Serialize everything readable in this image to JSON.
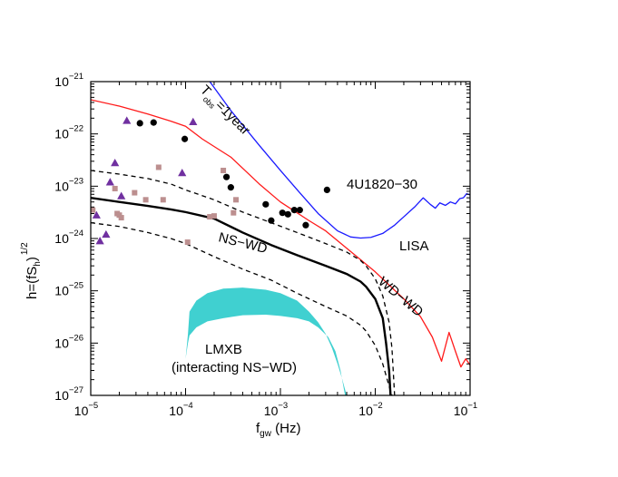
{
  "chart_data": {
    "type": "line",
    "xscale": "log",
    "yscale": "log",
    "xlim": [
      1e-05,
      0.1
    ],
    "ylim": [
      1e-27,
      1e-21
    ],
    "grid": false,
    "x_ticks": [
      {
        "value": 1e-05,
        "base": "10",
        "exp": "−5"
      },
      {
        "value": 0.0001,
        "base": "10",
        "exp": "−4"
      },
      {
        "value": 0.001,
        "base": "10",
        "exp": "−3"
      },
      {
        "value": 0.01,
        "base": "10",
        "exp": "−2"
      },
      {
        "value": 0.1,
        "base": "10",
        "exp": "−1"
      }
    ],
    "y_ticks": [
      {
        "value": 1e-27,
        "base": "10",
        "exp": "−27"
      },
      {
        "value": 1e-26,
        "base": "10",
        "exp": "−26"
      },
      {
        "value": 1e-25,
        "base": "10",
        "exp": "−25"
      },
      {
        "value": 1e-24,
        "base": "10",
        "exp": "−24"
      },
      {
        "value": 1e-23,
        "base": "10",
        "exp": "−23"
      },
      {
        "value": 1e-22,
        "base": "10",
        "exp": "−22"
      },
      {
        "value": 1e-21,
        "base": "10",
        "exp": "−21"
      }
    ],
    "xlabel": {
      "main": "f",
      "sub": "gw",
      "rest": " (Hz)"
    },
    "ylabel": {
      "main": "h=(fS",
      "sub": "h",
      "close": ")",
      "sup": "1/2"
    },
    "annotations": {
      "tobs": {
        "main": "T",
        "sub": "obs",
        "rest": "=1year"
      },
      "source_4u": "4U1820−30",
      "lisa": "LISA",
      "ns_wd": "NS−WD",
      "wd_wd": "WD−WD",
      "lmxb_line1": "LMXB",
      "lmxb_line2": "(interacting NS−WD)"
    },
    "colors": {
      "blue": "#1a1aff",
      "red": "#ff1a1a",
      "black": "#000000",
      "cyan": "#40d0d0",
      "purple": "#7030a0",
      "tan": "#bc8f8f"
    },
    "series": [
      {
        "style": "solid",
        "color": "#1a1aff",
        "x": [
          0.00018,
          0.0003,
          0.0006,
          0.001,
          0.0016,
          0.0025,
          0.004,
          0.0055,
          0.007,
          0.009,
          0.012,
          0.016,
          0.02,
          0.026,
          0.032,
          0.038,
          0.043,
          0.048,
          0.055,
          0.062,
          0.07,
          0.078,
          0.085,
          0.092,
          0.1
        ],
        "y": [
          1e-21,
          2.8e-22,
          6e-23,
          2e-23,
          7.5e-24,
          3e-24,
          1.4e-24,
          1.07e-24,
          1.02e-24,
          1.05e-24,
          1.25e-24,
          1.8e-24,
          2.6e-24,
          4e-24,
          6e-24,
          4.5e-24,
          3.8e-24,
          4.8e-24,
          4.3e-24,
          5e-24,
          4.6e-24,
          5.8e-24,
          6e-24,
          7.2e-24,
          6.8e-24
        ]
      },
      {
        "style": "solid",
        "color": "#ff1a1a",
        "x": [
          1e-05,
          2e-05,
          4e-05,
          7e-05,
          0.0001,
          0.00015,
          0.0003,
          0.0006,
          0.001,
          0.002,
          0.003,
          0.005,
          0.01,
          0.02,
          0.03,
          0.04,
          0.05,
          0.06,
          0.07,
          0.08,
          0.09,
          0.1
        ],
        "y": [
          4.5e-22,
          3.4e-22,
          2.4e-22,
          1.75e-22,
          1.4e-22,
          8e-23,
          3.6e-23,
          1.1e-23,
          5e-24,
          2.2e-24,
          1.4e-24,
          6.5e-25,
          2.3e-25,
          7e-26,
          3.2e-26,
          1.3e-26,
          4.5e-27,
          1.6e-26,
          7e-27,
          3.5e-27,
          5e-27,
          3.8e-27
        ]
      },
      {
        "style": "solid",
        "color": "#000000",
        "x": [
          1e-05,
          2e-05,
          4e-05,
          7e-05,
          0.0001,
          0.0002,
          0.0004,
          0.0008,
          0.0015,
          0.003,
          0.005,
          0.007,
          0.008,
          0.01,
          0.012,
          0.013,
          0.014,
          0.0145
        ],
        "y": [
          6e-24,
          5e-24,
          4.2e-24,
          3.6e-24,
          3.2e-24,
          2.4e-24,
          1.3e-24,
          7.5e-25,
          4.8e-25,
          3e-25,
          2.1e-25,
          1.5e-25,
          1.2e-25,
          7e-26,
          3e-26,
          1e-26,
          3e-27,
          1e-27
        ]
      },
      {
        "style": "dashed",
        "color": "#000000",
        "x": [
          1e-05,
          2e-05,
          4e-05,
          7e-05,
          0.0001,
          0.0002,
          0.0004,
          0.0008,
          0.0015,
          0.003,
          0.005,
          0.007,
          0.008,
          0.01,
          0.012,
          0.014,
          0.015,
          0.016
        ],
        "y": [
          2e-23,
          1.7e-23,
          1.4e-23,
          1.1e-23,
          8.5e-24,
          5.5e-24,
          3.2e-24,
          2e-24,
          1.3e-24,
          8e-25,
          5.5e-25,
          3.8e-25,
          3e-25,
          1.7e-25,
          8e-26,
          2.5e-26,
          8e-27,
          1e-27
        ]
      },
      {
        "style": "dashed",
        "color": "#000000",
        "x": [
          1e-05,
          2e-05,
          4e-05,
          7e-05,
          0.0001,
          0.0002,
          0.0004,
          0.0008,
          0.0015,
          0.003,
          0.005,
          0.007,
          0.008,
          0.01,
          0.012,
          0.014,
          0.015
        ],
        "y": [
          2e-24,
          1.7e-24,
          1.3e-24,
          1e-24,
          8e-25,
          4.5e-25,
          2.6e-25,
          1.6e-25,
          9e-26,
          5e-26,
          3.3e-26,
          2.2e-26,
          1.7e-26,
          9e-27,
          4e-27,
          1.5e-27,
          1e-27
        ]
      }
    ],
    "lmxb_band": {
      "color": "#40d0d0",
      "upper": {
        "x": [
          0.0001,
          0.000106,
          0.00011,
          0.00013,
          0.00017,
          0.00025,
          0.0004,
          0.0007,
          0.001,
          0.0015,
          0.002,
          0.0025,
          0.003,
          0.0035,
          0.004,
          0.0045,
          0.005
        ],
        "y": [
          5e-27,
          1.5e-26,
          4e-26,
          6.5e-26,
          9e-26,
          1.1e-25,
          1.15e-25,
          1.05e-25,
          9e-26,
          6.5e-26,
          4e-26,
          2.5e-26,
          1.5e-26,
          8e-27,
          4e-27,
          2e-27,
          1e-27
        ]
      },
      "lower": {
        "x": [
          0.0048,
          0.0043,
          0.0038,
          0.0032,
          0.0025,
          0.002,
          0.0015,
          0.001,
          0.0007,
          0.0004,
          0.00025,
          0.00017,
          0.00013,
          0.00011,
          0.000106
        ],
        "y": [
          1e-27,
          3e-27,
          7e-27,
          1.3e-26,
          2e-26,
          2.6e-26,
          3e-26,
          3.3e-26,
          3.5e-26,
          3.4e-26,
          3e-26,
          2.6e-26,
          2e-26,
          1.4e-26,
          1e-26
        ]
      }
    },
    "scatter_series": [
      {
        "marker": "circle",
        "color": "#000000",
        "points": [
          [
            3.3e-05,
            1.6e-22
          ],
          [
            4.6e-05,
            1.65e-22
          ],
          [
            9.8e-05,
            8e-23
          ],
          [
            0.00027,
            1.5e-23
          ],
          [
            0.0003,
            9.5e-24
          ],
          [
            0.0007,
            4.5e-24
          ],
          [
            0.0008,
            2.2e-24
          ],
          [
            0.00105,
            3.1e-24
          ],
          [
            0.0012,
            2.9e-24
          ],
          [
            0.0014,
            3.5e-24
          ],
          [
            0.0016,
            3.5e-24
          ],
          [
            0.00185,
            1.8e-24
          ],
          [
            0.0031,
            8.5e-24
          ]
        ]
      },
      {
        "marker": "triangle",
        "color": "#7030a0",
        "points": [
          [
            1.15e-05,
            2.8e-24
          ],
          [
            1.25e-05,
            9e-25
          ],
          [
            1.45e-05,
            1.2e-24
          ],
          [
            1.6e-05,
            1.2e-23
          ],
          [
            1.8e-05,
            2.8e-23
          ],
          [
            2.1e-05,
            6.5e-24
          ],
          [
            2.4e-05,
            1.8e-22
          ],
          [
            9.2e-05,
            1.8e-23
          ],
          [
            0.00012,
            1.7e-22
          ]
        ]
      },
      {
        "marker": "square",
        "color": "#bc8f8f",
        "points": [
          [
            1.05e-05,
            3.5e-24
          ],
          [
            1.8e-05,
            9e-24
          ],
          [
            1.9e-05,
            3e-24
          ],
          [
            2e-05,
            2.8e-24
          ],
          [
            2.1e-05,
            2.5e-24
          ],
          [
            2.9e-05,
            7.5e-24
          ],
          [
            3.8e-05,
            5.5e-24
          ],
          [
            5.2e-05,
            2.3e-23
          ],
          [
            5.8e-05,
            5.5e-24
          ],
          [
            0.000105,
            8.5e-25
          ],
          [
            0.00018,
            2.6e-24
          ],
          [
            0.0002,
            2.7e-24
          ],
          [
            0.00025,
            2e-23
          ],
          [
            0.00032,
            3.1e-24
          ],
          [
            0.00034,
            5.5e-24
          ]
        ]
      }
    ]
  }
}
